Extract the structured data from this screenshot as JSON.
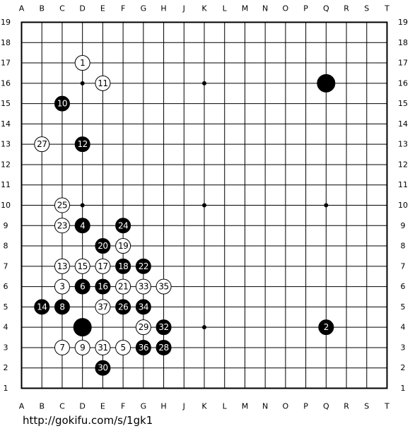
{
  "board": {
    "columns": [
      "A",
      "B",
      "C",
      "D",
      "E",
      "F",
      "G",
      "H",
      "J",
      "K",
      "L",
      "M",
      "N",
      "O",
      "P",
      "Q",
      "R",
      "S",
      "T"
    ],
    "rows": [
      19,
      18,
      17,
      16,
      15,
      14,
      13,
      12,
      11,
      10,
      9,
      8,
      7,
      6,
      5,
      4,
      3,
      2,
      1
    ],
    "stones": [
      {
        "color": "black",
        "col": "Q",
        "row": 16
      },
      {
        "color": "black",
        "col": "D",
        "row": 4
      },
      {
        "color": "white",
        "col": "D",
        "row": 17,
        "label": 1
      },
      {
        "color": "black",
        "col": "Q",
        "row": 4,
        "label": 2
      },
      {
        "color": "white",
        "col": "C",
        "row": 6,
        "label": 3
      },
      {
        "color": "black",
        "col": "D",
        "row": 9,
        "label": 4
      },
      {
        "color": "white",
        "col": "F",
        "row": 3,
        "label": 5
      },
      {
        "color": "black",
        "col": "D",
        "row": 6,
        "label": 6
      },
      {
        "color": "white",
        "col": "C",
        "row": 3,
        "label": 7
      },
      {
        "color": "black",
        "col": "C",
        "row": 5,
        "label": 8
      },
      {
        "color": "white",
        "col": "D",
        "row": 3,
        "label": 9
      },
      {
        "color": "black",
        "col": "C",
        "row": 15,
        "label": 10
      },
      {
        "color": "white",
        "col": "E",
        "row": 16,
        "label": 11
      },
      {
        "color": "black",
        "col": "D",
        "row": 13,
        "label": 12
      },
      {
        "color": "white",
        "col": "C",
        "row": 7,
        "label": 13
      },
      {
        "color": "black",
        "col": "B",
        "row": 5,
        "label": 14
      },
      {
        "color": "white",
        "col": "D",
        "row": 7,
        "label": 15
      },
      {
        "color": "black",
        "col": "E",
        "row": 6,
        "label": 16
      },
      {
        "color": "white",
        "col": "E",
        "row": 7,
        "label": 17
      },
      {
        "color": "black",
        "col": "F",
        "row": 7,
        "label": 18
      },
      {
        "color": "white",
        "col": "F",
        "row": 8,
        "label": 19
      },
      {
        "color": "black",
        "col": "E",
        "row": 8,
        "label": 20
      },
      {
        "color": "white",
        "col": "F",
        "row": 6,
        "label": 21
      },
      {
        "color": "black",
        "col": "G",
        "row": 7,
        "label": 22
      },
      {
        "color": "white",
        "col": "C",
        "row": 9,
        "label": 23
      },
      {
        "color": "black",
        "col": "F",
        "row": 9,
        "label": 24
      },
      {
        "color": "white",
        "col": "C",
        "row": 10,
        "label": 25
      },
      {
        "color": "black",
        "col": "F",
        "row": 5,
        "label": 26
      },
      {
        "color": "white",
        "col": "B",
        "row": 13,
        "label": 27
      },
      {
        "color": "black",
        "col": "H",
        "row": 3,
        "label": 28
      },
      {
        "color": "white",
        "col": "G",
        "row": 4,
        "label": 29
      },
      {
        "color": "black",
        "col": "E",
        "row": 2,
        "label": 30
      },
      {
        "color": "white",
        "col": "E",
        "row": 3,
        "label": 31
      },
      {
        "color": "black",
        "col": "H",
        "row": 4,
        "label": 32
      },
      {
        "color": "white",
        "col": "G",
        "row": 6,
        "label": 33
      },
      {
        "color": "black",
        "col": "G",
        "row": 5,
        "label": 34
      },
      {
        "color": "white",
        "col": "H",
        "row": 6,
        "label": 35
      },
      {
        "color": "black",
        "col": "G",
        "row": 3,
        "label": 36
      },
      {
        "color": "white",
        "col": "E",
        "row": 5,
        "label": 37
      }
    ]
  },
  "footer": {
    "url": "http://gokifu.com/s/1gk1"
  }
}
